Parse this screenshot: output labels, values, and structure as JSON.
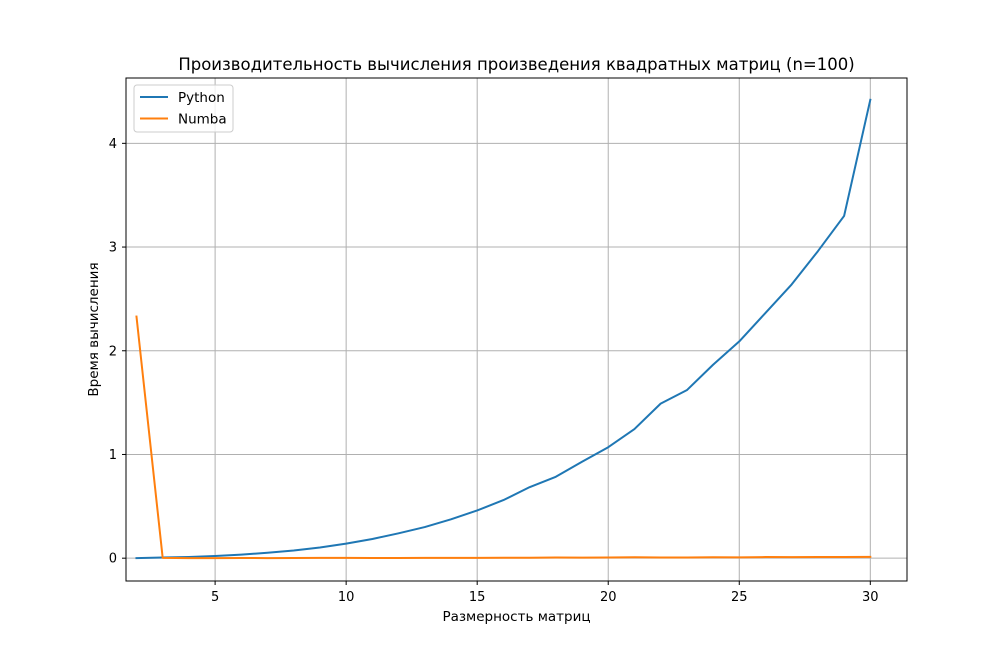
{
  "chart_data": {
    "type": "line",
    "title": "Производительность вычисления произведения квадратных матриц (n=100)",
    "xlabel": "Размерность матриц",
    "ylabel": "Время вычисления",
    "xlim": [
      1.6,
      31.4
    ],
    "ylim": [
      -0.22,
      4.63
    ],
    "x_ticks": [
      5,
      10,
      15,
      20,
      25,
      30
    ],
    "y_ticks": [
      0,
      1,
      2,
      3,
      4
    ],
    "grid": true,
    "legend_position": "top-left",
    "x": [
      2,
      3,
      4,
      5,
      6,
      7,
      8,
      9,
      10,
      11,
      12,
      13,
      14,
      15,
      16,
      17,
      18,
      19,
      20,
      21,
      22,
      23,
      24,
      25,
      26,
      27,
      28,
      29,
      30
    ],
    "series": [
      {
        "name": "Python",
        "color": "#1f77b4",
        "values": [
          0.001,
          0.006,
          0.012,
          0.021,
          0.034,
          0.052,
          0.074,
          0.103,
          0.14,
          0.185,
          0.24,
          0.3,
          0.375,
          0.46,
          0.56,
          0.685,
          0.785,
          0.93,
          1.07,
          1.245,
          1.49,
          1.62,
          1.865,
          2.09,
          2.365,
          2.64,
          2.96,
          3.3,
          4.42
        ]
      },
      {
        "name": "Numba",
        "color": "#ff7f0e",
        "values": [
          2.33,
          0.003,
          0.001,
          0.001,
          0.002,
          0.001,
          0.002,
          0.003,
          0.003,
          0.002,
          0.002,
          0.003,
          0.003,
          0.003,
          0.004,
          0.004,
          0.006,
          0.005,
          0.007,
          0.009,
          0.006,
          0.007,
          0.009,
          0.008,
          0.011,
          0.01,
          0.011,
          0.011,
          0.013
        ]
      }
    ]
  }
}
